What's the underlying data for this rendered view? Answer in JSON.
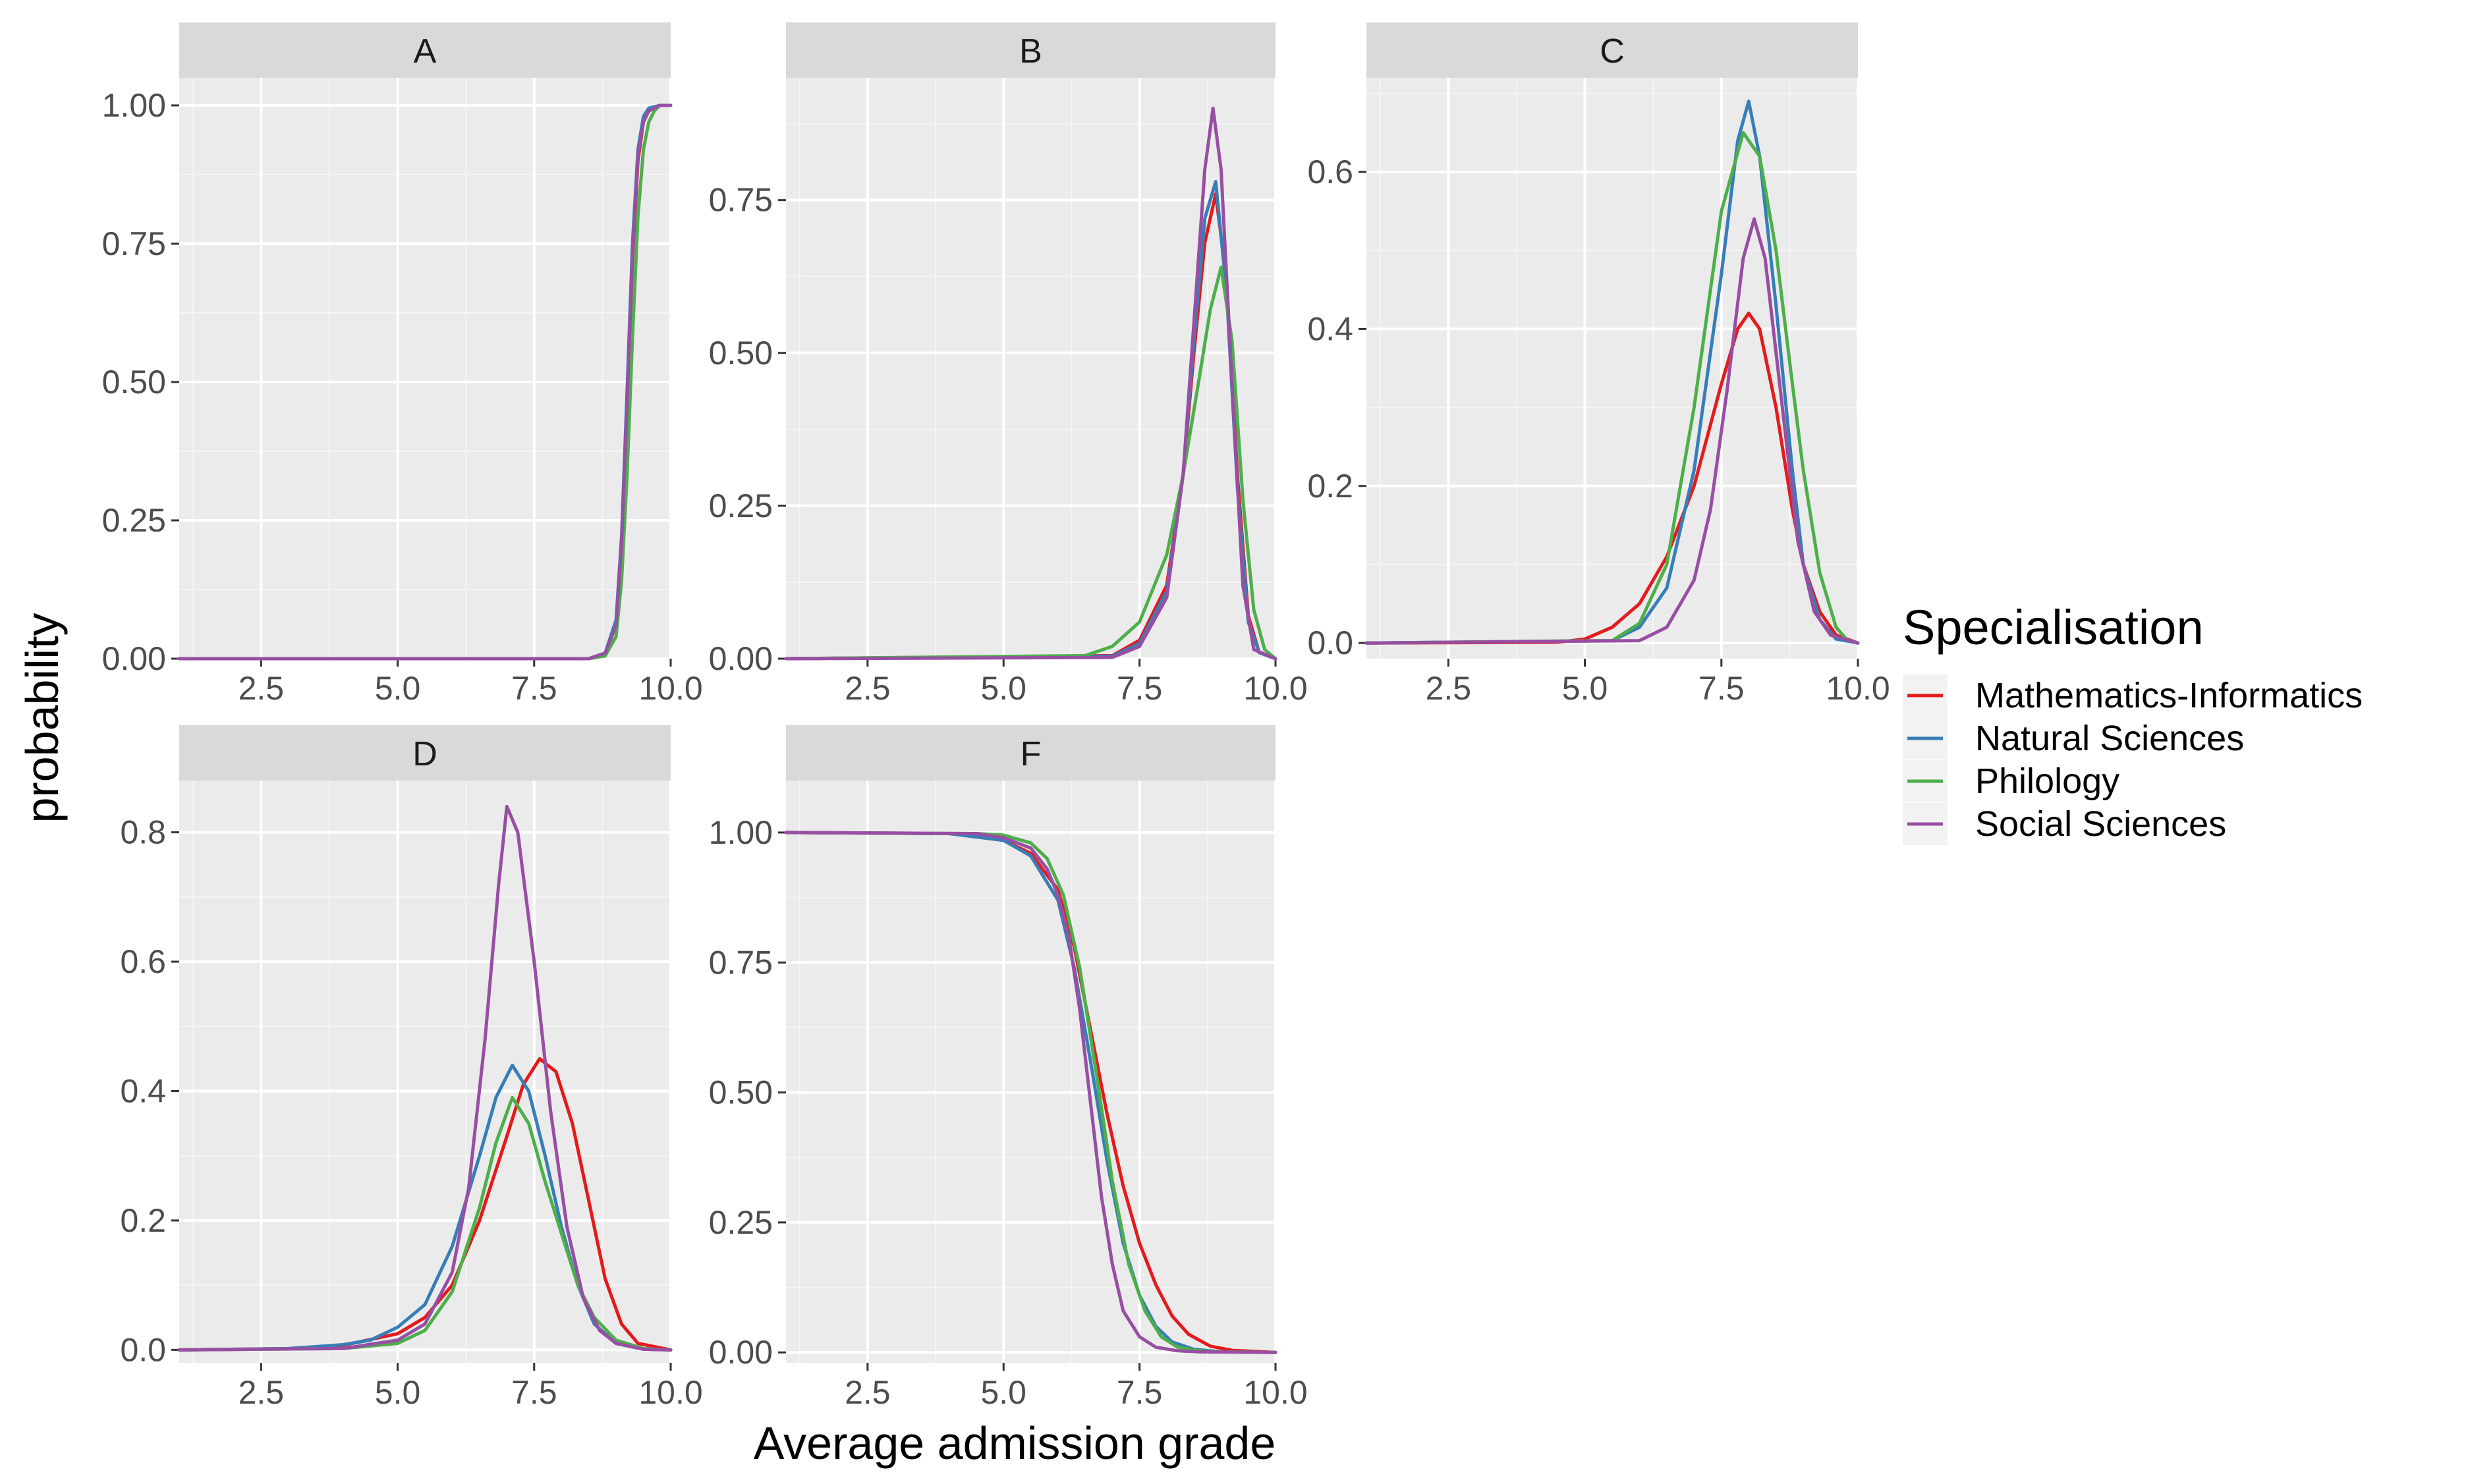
{
  "chart_data": {
    "type": "line",
    "xlabel": "Average admission grade",
    "ylabel": "probability",
    "legend": {
      "title": "Specialisation",
      "placement": "right",
      "entries": [
        "Mathematics-Informatics",
        "Natural Sciences",
        "Philology",
        "Social Sciences"
      ]
    },
    "colors": {
      "Mathematics-Informatics": "#E41A1C",
      "Natural Sciences": "#377EB8",
      "Philology": "#4DAF4A",
      "Social Sciences": "#984EA3"
    },
    "grid": true,
    "xlim": [
      1,
      10
    ],
    "x_ticks": [
      2.5,
      5.0,
      7.5,
      10.0
    ],
    "x_tick_labels": [
      "2.5",
      "5.0",
      "7.5",
      "10.0"
    ],
    "panels": [
      {
        "label": "A",
        "ylim": [
          0,
          1.05
        ],
        "y_ticks": [
          0,
          0.25,
          0.5,
          0.75,
          1.0
        ],
        "y_tick_labels": [
          "0.00",
          "0.25",
          "0.50",
          "0.75",
          "1.00"
        ],
        "series": [
          {
            "name": "Mathematics-Informatics",
            "x": [
              1,
              8.5,
              8.8,
              9.0,
              9.1,
              9.2,
              9.3,
              9.4,
              9.5,
              9.6,
              9.8,
              10
            ],
            "values": [
              0,
              0,
              0.01,
              0.06,
              0.2,
              0.45,
              0.72,
              0.9,
              0.97,
              0.99,
              1.0,
              1.0
            ]
          },
          {
            "name": "Natural Sciences",
            "x": [
              1,
              8.5,
              8.8,
              9.0,
              9.1,
              9.2,
              9.3,
              9.4,
              9.5,
              9.6,
              9.8,
              10
            ],
            "values": [
              0,
              0,
              0.01,
              0.07,
              0.22,
              0.48,
              0.75,
              0.92,
              0.98,
              0.995,
              1.0,
              1.0
            ]
          },
          {
            "name": "Philology",
            "x": [
              1,
              8.5,
              8.8,
              9.0,
              9.1,
              9.2,
              9.3,
              9.4,
              9.5,
              9.6,
              9.7,
              9.8,
              10
            ],
            "values": [
              0,
              0,
              0.005,
              0.04,
              0.14,
              0.33,
              0.58,
              0.8,
              0.92,
              0.97,
              0.99,
              1.0,
              1.0
            ]
          },
          {
            "name": "Social Sciences",
            "x": [
              1,
              8.5,
              8.8,
              9.0,
              9.1,
              9.2,
              9.3,
              9.4,
              9.5,
              9.6,
              9.8,
              10
            ],
            "values": [
              0,
              0,
              0.01,
              0.06,
              0.21,
              0.46,
              0.73,
              0.91,
              0.97,
              0.99,
              1.0,
              1.0
            ]
          }
        ]
      },
      {
        "label": "B",
        "ylim": [
          0,
          0.95
        ],
        "y_ticks": [
          0,
          0.25,
          0.5,
          0.75
        ],
        "y_tick_labels": [
          "0.00",
          "0.25",
          "0.50",
          "0.75"
        ],
        "series": [
          {
            "name": "Mathematics-Informatics",
            "x": [
              1,
              7.0,
              7.5,
              8.0,
              8.3,
              8.5,
              8.7,
              8.9,
              9.1,
              9.3,
              9.5,
              9.7,
              10
            ],
            "values": [
              0,
              0.005,
              0.03,
              0.12,
              0.3,
              0.5,
              0.68,
              0.76,
              0.62,
              0.3,
              0.07,
              0.01,
              0
            ]
          },
          {
            "name": "Natural Sciences",
            "x": [
              1,
              7.0,
              7.5,
              8.0,
              8.3,
              8.5,
              8.7,
              8.9,
              9.1,
              9.3,
              9.5,
              9.7,
              10
            ],
            "values": [
              0,
              0.004,
              0.025,
              0.11,
              0.3,
              0.52,
              0.72,
              0.78,
              0.6,
              0.28,
              0.06,
              0.01,
              0
            ]
          },
          {
            "name": "Philology",
            "x": [
              1,
              6.5,
              7.0,
              7.5,
              8.0,
              8.3,
              8.6,
              8.8,
              9.0,
              9.2,
              9.4,
              9.6,
              9.8,
              10
            ],
            "values": [
              0,
              0.005,
              0.02,
              0.06,
              0.17,
              0.3,
              0.46,
              0.57,
              0.64,
              0.52,
              0.26,
              0.08,
              0.015,
              0
            ]
          },
          {
            "name": "Social Sciences",
            "x": [
              1,
              7.0,
              7.5,
              8.0,
              8.3,
              8.5,
              8.7,
              8.85,
              9.0,
              9.2,
              9.4,
              9.6,
              10
            ],
            "values": [
              0,
              0.002,
              0.02,
              0.1,
              0.3,
              0.55,
              0.8,
              0.9,
              0.8,
              0.45,
              0.12,
              0.015,
              0
            ]
          }
        ]
      },
      {
        "label": "C",
        "ylim": [
          -0.02,
          0.72
        ],
        "y_ticks": [
          0,
          0.2,
          0.4,
          0.6
        ],
        "y_tick_labels": [
          "0.0",
          "0.2",
          "0.4",
          "0.6"
        ],
        "series": [
          {
            "name": "Mathematics-Informatics",
            "x": [
              1,
              4.5,
              5.0,
              5.5,
              6.0,
              6.5,
              7.0,
              7.5,
              7.8,
              8.0,
              8.2,
              8.5,
              8.8,
              9.0,
              9.3,
              9.6,
              10
            ],
            "values": [
              0,
              0.001,
              0.005,
              0.02,
              0.05,
              0.11,
              0.2,
              0.33,
              0.4,
              0.42,
              0.4,
              0.3,
              0.17,
              0.1,
              0.04,
              0.01,
              0
            ]
          },
          {
            "name": "Natural Sciences",
            "x": [
              1,
              5.5,
              6.0,
              6.5,
              7.0,
              7.5,
              7.8,
              8.0,
              8.2,
              8.5,
              8.8,
              9.0,
              9.3,
              9.6,
              10
            ],
            "values": [
              0,
              0.003,
              0.02,
              0.07,
              0.22,
              0.47,
              0.64,
              0.69,
              0.62,
              0.43,
              0.22,
              0.1,
              0.03,
              0.005,
              0
            ]
          },
          {
            "name": "Philology",
            "x": [
              1,
              5.5,
              6.0,
              6.5,
              7.0,
              7.5,
              7.9,
              8.2,
              8.5,
              8.8,
              9.0,
              9.3,
              9.6,
              9.8,
              10
            ],
            "values": [
              0,
              0.003,
              0.025,
              0.1,
              0.3,
              0.55,
              0.65,
              0.62,
              0.5,
              0.33,
              0.22,
              0.09,
              0.02,
              0.004,
              0
            ]
          },
          {
            "name": "Social Sciences",
            "x": [
              1,
              6.0,
              6.5,
              7.0,
              7.3,
              7.6,
              7.9,
              8.1,
              8.3,
              8.6,
              8.9,
              9.2,
              9.5,
              10
            ],
            "values": [
              0,
              0.003,
              0.02,
              0.08,
              0.17,
              0.32,
              0.49,
              0.54,
              0.49,
              0.31,
              0.13,
              0.04,
              0.01,
              0
            ]
          }
        ]
      },
      {
        "label": "D",
        "ylim": [
          -0.02,
          0.88
        ],
        "y_ticks": [
          0,
          0.2,
          0.4,
          0.6,
          0.8
        ],
        "y_tick_labels": [
          "0.0",
          "0.2",
          "0.4",
          "0.6",
          "0.8"
        ],
        "series": [
          {
            "name": "Mathematics-Informatics",
            "x": [
              1,
              3.0,
              4.0,
              5.0,
              5.5,
              6.0,
              6.5,
              7.0,
              7.3,
              7.6,
              7.9,
              8.2,
              8.5,
              8.8,
              9.1,
              9.4,
              10
            ],
            "values": [
              0,
              0.002,
              0.007,
              0.025,
              0.05,
              0.1,
              0.2,
              0.33,
              0.41,
              0.45,
              0.43,
              0.35,
              0.23,
              0.11,
              0.04,
              0.01,
              0
            ]
          },
          {
            "name": "Natural Sciences",
            "x": [
              1,
              3.0,
              4.0,
              4.5,
              5.0,
              5.5,
              6.0,
              6.5,
              6.8,
              7.1,
              7.4,
              7.7,
              8.0,
              8.3,
              8.6,
              9.0,
              9.5,
              10
            ],
            "values": [
              0,
              0.002,
              0.008,
              0.015,
              0.035,
              0.07,
              0.16,
              0.3,
              0.39,
              0.44,
              0.4,
              0.3,
              0.19,
              0.1,
              0.04,
              0.01,
              0.001,
              0
            ]
          },
          {
            "name": "Philology",
            "x": [
              1,
              4.0,
              5.0,
              5.5,
              6.0,
              6.5,
              6.8,
              7.1,
              7.4,
              7.7,
              8.0,
              8.3,
              8.6,
              9.0,
              9.5,
              10
            ],
            "values": [
              0,
              0.002,
              0.01,
              0.03,
              0.09,
              0.22,
              0.32,
              0.39,
              0.35,
              0.26,
              0.18,
              0.1,
              0.05,
              0.015,
              0.002,
              0
            ]
          },
          {
            "name": "Social Sciences",
            "x": [
              1,
              4.0,
              5.0,
              5.5,
              6.0,
              6.3,
              6.6,
              6.85,
              7.0,
              7.2,
              7.5,
              7.8,
              8.1,
              8.4,
              8.7,
              9.0,
              9.5,
              10
            ],
            "values": [
              0,
              0.002,
              0.015,
              0.04,
              0.12,
              0.25,
              0.48,
              0.72,
              0.84,
              0.8,
              0.6,
              0.37,
              0.19,
              0.08,
              0.03,
              0.01,
              0.001,
              0
            ]
          }
        ]
      },
      {
        "label": "F",
        "ylim": [
          -0.02,
          1.1
        ],
        "y_ticks": [
          0,
          0.25,
          0.5,
          0.75,
          1.0
        ],
        "y_tick_labels": [
          "0.00",
          "0.25",
          "0.50",
          "0.75",
          "1.00"
        ],
        "series": [
          {
            "name": "Mathematics-Informatics",
            "x": [
              1,
              4.0,
              5.0,
              5.5,
              6.0,
              6.3,
              6.6,
              6.9,
              7.2,
              7.5,
              7.8,
              8.1,
              8.4,
              8.8,
              9.2,
              10
            ],
            "values": [
              1.0,
              0.998,
              0.985,
              0.96,
              0.89,
              0.78,
              0.62,
              0.46,
              0.32,
              0.21,
              0.13,
              0.07,
              0.035,
              0.012,
              0.004,
              0
            ]
          },
          {
            "name": "Natural Sciences",
            "x": [
              1,
              4.0,
              5.0,
              5.5,
              6.0,
              6.3,
              6.6,
              6.9,
              7.2,
              7.5,
              7.8,
              8.1,
              8.5,
              9.0,
              10
            ],
            "values": [
              1.0,
              0.998,
              0.985,
              0.955,
              0.87,
              0.74,
              0.56,
              0.37,
              0.21,
              0.11,
              0.05,
              0.02,
              0.006,
              0.001,
              0
            ]
          },
          {
            "name": "Philology",
            "x": [
              1,
              4.5,
              5.0,
              5.5,
              5.8,
              6.1,
              6.4,
              6.7,
              7.0,
              7.3,
              7.6,
              7.9,
              8.2,
              8.6,
              9.0,
              10
            ],
            "values": [
              1.0,
              0.998,
              0.995,
              0.98,
              0.95,
              0.88,
              0.74,
              0.54,
              0.33,
              0.17,
              0.08,
              0.03,
              0.01,
              0.003,
              0.001,
              0
            ]
          },
          {
            "name": "Social Sciences",
            "x": [
              1,
              4.5,
              5.0,
              5.5,
              5.8,
              6.0,
              6.2,
              6.4,
              6.6,
              6.8,
              7.0,
              7.2,
              7.5,
              7.8,
              8.2,
              8.6,
              10
            ],
            "values": [
              1.0,
              0.998,
              0.99,
              0.97,
              0.93,
              0.88,
              0.8,
              0.66,
              0.48,
              0.3,
              0.17,
              0.08,
              0.03,
              0.01,
              0.003,
              0.001,
              0
            ]
          }
        ]
      }
    ]
  }
}
